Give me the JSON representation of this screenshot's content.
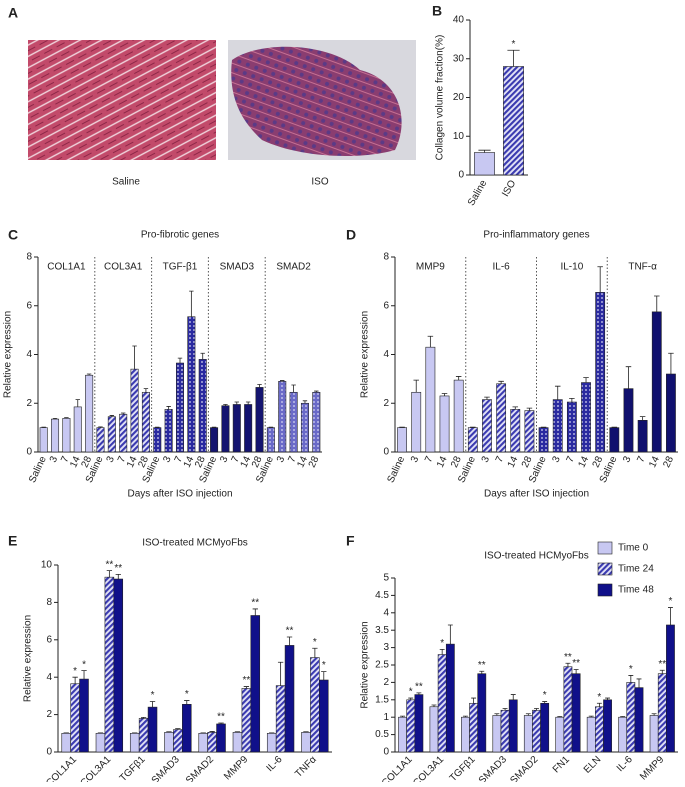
{
  "figure": {
    "panel_a": {
      "panel": "A",
      "labels": [
        "Saline",
        "ISO"
      ]
    }
  },
  "chart_data": [
    {
      "panel": "B",
      "type": "bar",
      "categories": [
        "Saline",
        "ISO"
      ],
      "values": [
        5.8,
        28
      ],
      "errors": [
        0.6,
        4.2
      ],
      "colors": [
        "#c8c8f2",
        "#3a3ab0"
      ],
      "patterns": [
        "solid",
        "hatch"
      ],
      "annotations": [
        null,
        "*"
      ],
      "ylabel": "Collagen volume fraction(%)",
      "ylim": [
        0,
        40
      ],
      "yticks": [
        0,
        10,
        20,
        30,
        40
      ]
    },
    {
      "panel": "C",
      "type": "faceted_bar",
      "title": "Pro-fibrotic genes",
      "ylabel": "Relative expression",
      "xlabel": "Days after ISO injection",
      "categories": [
        "Saline",
        "3",
        "7",
        "14",
        "28"
      ],
      "ylim": [
        0,
        8
      ],
      "yticks": [
        0,
        2,
        4,
        6,
        8
      ],
      "groups": [
        {
          "name": "COL1A1",
          "color": "#c8c8f2",
          "pattern": "solid",
          "values": [
            1,
            1.35,
            1.38,
            1.85,
            3.15
          ],
          "errors": [
            0.02,
            0.03,
            0.03,
            0.3,
            0.05
          ]
        },
        {
          "name": "COL3A1",
          "color": "#3a3ab0",
          "pattern": "hatch",
          "values": [
            1,
            1.45,
            1.55,
            3.4,
            2.45
          ],
          "errors": [
            0.03,
            0.05,
            0.05,
            0.95,
            0.15
          ]
        },
        {
          "name": "TGF-β1",
          "color": "#2a2aa0",
          "pattern": "dots",
          "values": [
            1,
            1.75,
            3.65,
            5.55,
            3.8
          ],
          "errors": [
            0.02,
            0.12,
            0.2,
            1.05,
            0.25
          ]
        },
        {
          "name": "SMAD3",
          "color": "#141470",
          "pattern": "solid",
          "values": [
            1,
            1.9,
            1.95,
            1.95,
            2.65
          ],
          "errors": [
            0.02,
            0.05,
            0.1,
            0.1,
            0.12
          ]
        },
        {
          "name": "SMAD2",
          "color": "#6a6ac8",
          "pattern": "dots",
          "values": [
            1,
            2.9,
            2.45,
            2.0,
            2.45
          ],
          "errors": [
            0.02,
            0.03,
            0.3,
            0.1,
            0.05
          ]
        }
      ]
    },
    {
      "panel": "D",
      "type": "faceted_bar",
      "title": "Pro-inflammatory genes",
      "ylabel": "Relative expression",
      "xlabel": "Days after ISO injection",
      "categories": [
        "Saline",
        "3",
        "7",
        "14",
        "28"
      ],
      "ylim": [
        0,
        8
      ],
      "yticks": [
        0,
        2,
        4,
        6,
        8
      ],
      "groups": [
        {
          "name": "MMP9",
          "color": "#c8c8f2",
          "pattern": "solid",
          "values": [
            1,
            2.45,
            4.3,
            2.3,
            2.95
          ],
          "errors": [
            0.02,
            0.5,
            0.45,
            0.1,
            0.15
          ]
        },
        {
          "name": "IL-6",
          "color": "#3a3ab0",
          "pattern": "hatch",
          "values": [
            1,
            2.15,
            2.8,
            1.75,
            1.7
          ],
          "errors": [
            0.02,
            0.1,
            0.1,
            0.1,
            0.1
          ]
        },
        {
          "name": "IL-10",
          "color": "#2a2aa0",
          "pattern": "dots",
          "values": [
            1,
            2.15,
            2.05,
            2.85,
            6.55
          ],
          "errors": [
            0.02,
            0.55,
            0.15,
            0.2,
            1.05
          ]
        },
        {
          "name": "TNF-α",
          "color": "#10106e",
          "pattern": "solid",
          "values": [
            1,
            2.6,
            1.3,
            5.75,
            3.2
          ],
          "errors": [
            0.02,
            0.9,
            0.15,
            0.65,
            0.85
          ]
        }
      ]
    },
    {
      "panel": "E",
      "type": "grouped_bar",
      "title": "ISO-treated MCMyoFbs",
      "ylabel": "Relative expression",
      "categories": [
        "COL1A1",
        "COL3A1",
        "TGFβ1",
        "SMAD3",
        "SMAD2",
        "MMP9",
        "IL-6",
        "TNFα"
      ],
      "ylim": [
        0,
        10
      ],
      "yticks": [
        0,
        2,
        4,
        6,
        8,
        10
      ],
      "series": [
        {
          "name": "Time 0",
          "color": "#c8c8f2",
          "pattern": "solid",
          "values": [
            1,
            1,
            1,
            1.05,
            1,
            1.05,
            1,
            1.05
          ],
          "errors": [
            0.02,
            0.02,
            0.02,
            0.03,
            0.02,
            0.03,
            0.02,
            0.03
          ],
          "annotations": [
            null,
            null,
            null,
            null,
            null,
            null,
            null,
            null
          ]
        },
        {
          "name": "Time 24",
          "color": "#3a3ab0",
          "pattern": "hatch",
          "values": [
            3.65,
            9.35,
            1.8,
            1.2,
            1.05,
            3.4,
            3.55,
            5.05
          ],
          "errors": [
            0.35,
            0.35,
            0.05,
            0.05,
            0.05,
            0.1,
            1.25,
            0.5
          ],
          "annotations": [
            "*",
            "**",
            null,
            null,
            null,
            "**",
            null,
            "*"
          ]
        },
        {
          "name": "Time 48",
          "color": "#10108a",
          "pattern": "solid",
          "values": [
            3.9,
            9.25,
            2.4,
            2.55,
            1.5,
            7.3,
            5.7,
            3.85
          ],
          "errors": [
            0.45,
            0.25,
            0.3,
            0.2,
            0.05,
            0.35,
            0.45,
            0.45
          ],
          "annotations": [
            "*",
            "**",
            "*",
            "*",
            "**",
            "**",
            "**",
            "*"
          ]
        }
      ]
    },
    {
      "panel": "F",
      "type": "grouped_bar",
      "title": "ISO-treated HCMyoFbs",
      "ylabel": "Relative expression",
      "legend": "top-right",
      "categories": [
        "COL1A1",
        "COL3A1",
        "TGFβ1",
        "SMAD3",
        "SMAD2",
        "FN1",
        "ELN",
        "IL-6",
        "MMP9"
      ],
      "ylim": [
        0,
        5
      ],
      "yticks": [
        0,
        0.5,
        1,
        1.5,
        2,
        2.5,
        3,
        3.5,
        4,
        4.5,
        5
      ],
      "series": [
        {
          "name": "Time 0",
          "color": "#c8c8f2",
          "pattern": "solid",
          "values": [
            1,
            1.3,
            1,
            1.05,
            1.05,
            1,
            1,
            1,
            1.05
          ],
          "errors": [
            0.03,
            0.05,
            0.03,
            0.05,
            0.05,
            0.02,
            0.03,
            0.02,
            0.05
          ],
          "annotations": [
            null,
            null,
            null,
            null,
            null,
            null,
            null,
            null,
            null
          ]
        },
        {
          "name": "Time 24",
          "color": "#3a3ab0",
          "pattern": "hatch",
          "values": [
            1.5,
            2.8,
            1.4,
            1.2,
            1.2,
            2.45,
            1.3,
            2,
            2.25
          ],
          "errors": [
            0.05,
            0.15,
            0.15,
            0.05,
            0.05,
            0.1,
            0.1,
            0.2,
            0.1
          ],
          "annotations": [
            "*",
            "*",
            null,
            null,
            null,
            "**",
            "*",
            "*",
            "**"
          ]
        },
        {
          "name": "Time 48",
          "color": "#10108a",
          "pattern": "solid",
          "values": [
            1.65,
            3.1,
            2.25,
            1.5,
            1.4,
            2.25,
            1.5,
            1.85,
            3.65
          ],
          "errors": [
            0.05,
            0.55,
            0.07,
            0.15,
            0.05,
            0.12,
            0.05,
            0.25,
            0.5
          ],
          "annotations": [
            "**",
            null,
            "**",
            null,
            "*",
            "**",
            null,
            null,
            "*"
          ]
        }
      ]
    }
  ]
}
